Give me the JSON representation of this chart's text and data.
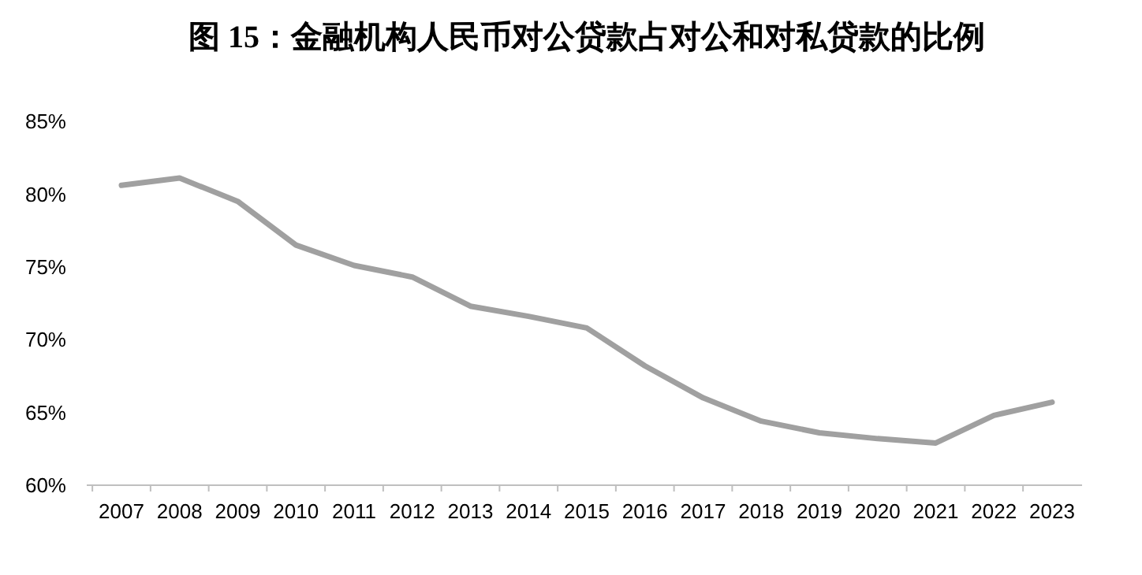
{
  "chart_data": {
    "type": "line",
    "title": "图 15：金融机构人民币对公贷款占对公和对私贷款的比例",
    "categories": [
      "2007",
      "2008",
      "2009",
      "2010",
      "2011",
      "2012",
      "2013",
      "2014",
      "2015",
      "2016",
      "2017",
      "2018",
      "2019",
      "2020",
      "2021",
      "2022",
      "2023"
    ],
    "series": [
      {
        "color": "#a0a0a0",
        "values": [
          80.6,
          81.1,
          79.5,
          76.5,
          75.1,
          74.3,
          72.3,
          71.6,
          70.8,
          68.2,
          66.0,
          64.4,
          63.6,
          63.2,
          62.9,
          64.8,
          65.7
        ]
      }
    ],
    "ylim": [
      60,
      85
    ],
    "yticks": [
      {
        "value": 60,
        "label": "60%"
      },
      {
        "value": 65,
        "label": "65%"
      },
      {
        "value": 70,
        "label": "70%"
      },
      {
        "value": 75,
        "label": "75%"
      },
      {
        "value": 80,
        "label": "80%"
      },
      {
        "value": 85,
        "label": "85%"
      }
    ],
    "marker": "none",
    "line_style": "solid"
  }
}
